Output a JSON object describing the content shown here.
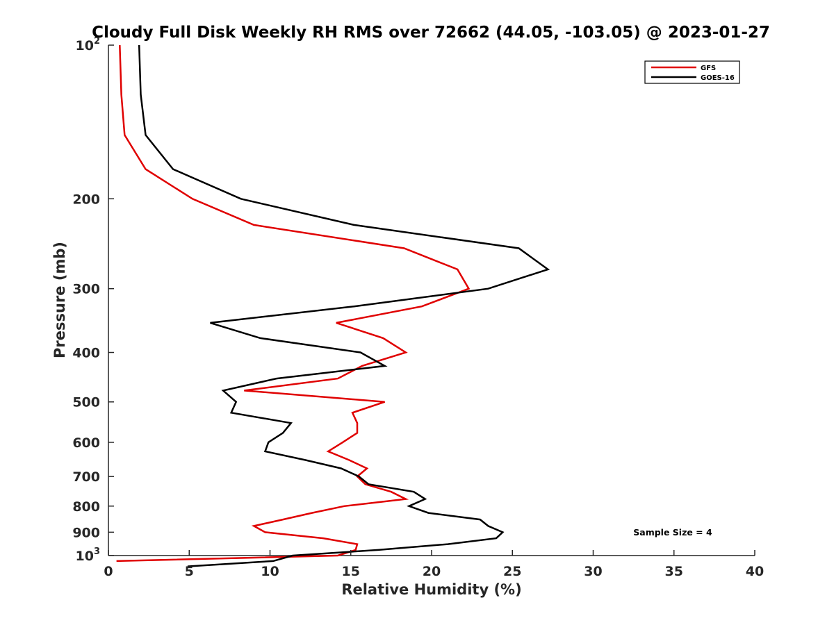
{
  "chart_data": {
    "type": "line",
    "title": "Cloudy Full Disk Weekly RH RMS over 72662 (44.05, -103.05) @ 2023-01-27",
    "xlabel": "Relative Humidity (%)",
    "ylabel": "Pressure (mb)",
    "xlim": [
      0,
      40
    ],
    "ylim": [
      100,
      1000
    ],
    "y_scale": "log",
    "y_reversed": true,
    "grid": false,
    "legend_position": "top-right",
    "x_ticks": [
      0,
      5,
      10,
      15,
      20,
      25,
      30,
      35,
      40
    ],
    "y_ticks": [
      {
        "value": 100,
        "base": "10",
        "exp": "2"
      },
      {
        "value": 200,
        "label": "200"
      },
      {
        "value": 300,
        "label": "300"
      },
      {
        "value": 400,
        "label": "400"
      },
      {
        "value": 500,
        "label": "500"
      },
      {
        "value": 600,
        "label": "600"
      },
      {
        "value": 700,
        "label": "700"
      },
      {
        "value": 800,
        "label": "800"
      },
      {
        "value": 900,
        "label": "900"
      },
      {
        "value": 1000,
        "base": "10",
        "exp": "3"
      }
    ],
    "annotation": "Sample Size = 4",
    "series": [
      {
        "name": "GFS",
        "color": "#e00000",
        "points": [
          [
            0.7,
            100
          ],
          [
            0.8,
            125
          ],
          [
            1.0,
            150
          ],
          [
            2.3,
            175
          ],
          [
            5.2,
            200
          ],
          [
            9.0,
            225
          ],
          [
            18.3,
            250
          ],
          [
            21.6,
            275
          ],
          [
            22.3,
            300
          ],
          [
            19.4,
            325
          ],
          [
            14.1,
            350
          ],
          [
            17.0,
            375
          ],
          [
            18.4,
            400
          ],
          [
            15.7,
            425
          ],
          [
            14.2,
            450
          ],
          [
            8.4,
            475
          ],
          [
            17.1,
            500
          ],
          [
            15.1,
            525
          ],
          [
            15.4,
            550
          ],
          [
            15.4,
            575
          ],
          [
            14.5,
            600
          ],
          [
            13.6,
            625
          ],
          [
            14.9,
            650
          ],
          [
            16.0,
            675
          ],
          [
            15.4,
            700
          ],
          [
            15.9,
            725
          ],
          [
            17.5,
            750
          ],
          [
            18.4,
            775
          ],
          [
            14.6,
            800
          ],
          [
            12.6,
            825
          ],
          [
            10.8,
            850
          ],
          [
            9.0,
            875
          ],
          [
            9.7,
            900
          ],
          [
            13.3,
            925
          ],
          [
            15.4,
            950
          ],
          [
            15.3,
            975
          ],
          [
            14.2,
            1000
          ],
          [
            0.5,
            1025
          ]
        ]
      },
      {
        "name": "GOES-16",
        "color": "#000000",
        "points": [
          [
            1.9,
            100
          ],
          [
            2.0,
            125
          ],
          [
            2.3,
            150
          ],
          [
            4.0,
            175
          ],
          [
            8.2,
            200
          ],
          [
            15.2,
            225
          ],
          [
            25.4,
            250
          ],
          [
            27.2,
            275
          ],
          [
            23.5,
            300
          ],
          [
            15.2,
            325
          ],
          [
            6.3,
            350
          ],
          [
            9.4,
            375
          ],
          [
            15.6,
            400
          ],
          [
            17.1,
            425
          ],
          [
            10.4,
            450
          ],
          [
            7.1,
            475
          ],
          [
            7.9,
            500
          ],
          [
            7.6,
            525
          ],
          [
            11.3,
            550
          ],
          [
            10.8,
            575
          ],
          [
            9.9,
            600
          ],
          [
            9.7,
            625
          ],
          [
            12.2,
            650
          ],
          [
            14.4,
            675
          ],
          [
            15.5,
            700
          ],
          [
            16.1,
            725
          ],
          [
            18.9,
            750
          ],
          [
            19.6,
            775
          ],
          [
            18.6,
            800
          ],
          [
            19.8,
            825
          ],
          [
            23.0,
            850
          ],
          [
            23.5,
            875
          ],
          [
            24.4,
            900
          ],
          [
            24.0,
            925
          ],
          [
            21.0,
            950
          ],
          [
            16.7,
            975
          ],
          [
            11.4,
            1000
          ],
          [
            10.2,
            1025
          ],
          [
            4.9,
            1050
          ]
        ]
      }
    ]
  }
}
